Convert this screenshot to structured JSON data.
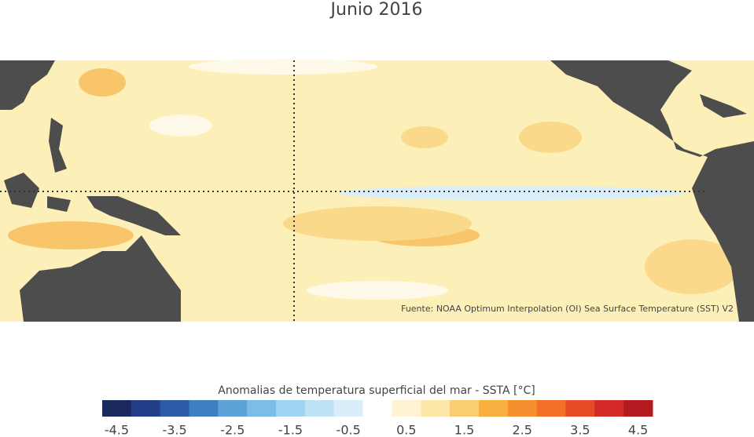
{
  "title": "Junio 2016",
  "map": {
    "source": "Fuente: NOAA Optimum Interpolation (OI) Sea Surface Temperature (SST) V2"
  },
  "colorbar": {
    "label": "Anomalias de temperatura superficial del mar - SSTA  [°C]",
    "xlim": [
      -4.75,
      4.75
    ],
    "xticks": [
      -4.5,
      -3.5,
      -2.5,
      -1.5,
      -0.5,
      0.5,
      1.5,
      2.5,
      3.5,
      4.5
    ],
    "colors": [
      "#1b2a5e",
      "#233f8a",
      "#2b5aa8",
      "#3d7fc0",
      "#5ca3d9",
      "#7cbde8",
      "#a0d4f3",
      "#bde3f5",
      "#d9eef8",
      "#ffffff",
      "#fff3d4",
      "#fde7a8",
      "#fbcd72",
      "#f9b040",
      "#f6902e",
      "#f27028",
      "#e64a26",
      "#d32a27",
      "#b31b20"
    ]
  }
}
